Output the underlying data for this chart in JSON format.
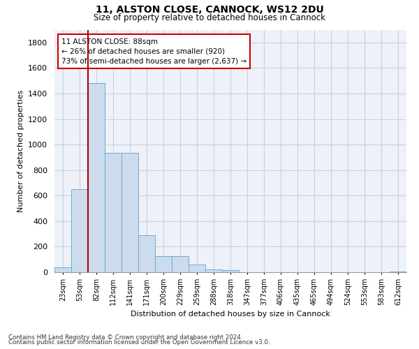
{
  "title1": "11, ALSTON CLOSE, CANNOCK, WS12 2DU",
  "title2": "Size of property relative to detached houses in Cannock",
  "xlabel": "Distribution of detached houses by size in Cannock",
  "ylabel": "Number of detached properties",
  "bin_labels": [
    "23sqm",
    "53sqm",
    "82sqm",
    "112sqm",
    "141sqm",
    "171sqm",
    "200sqm",
    "229sqm",
    "259sqm",
    "288sqm",
    "318sqm",
    "347sqm",
    "377sqm",
    "406sqm",
    "435sqm",
    "465sqm",
    "494sqm",
    "524sqm",
    "553sqm",
    "583sqm",
    "612sqm"
  ],
  "bar_values": [
    40,
    650,
    1480,
    935,
    935,
    290,
    125,
    125,
    62,
    22,
    15,
    0,
    0,
    0,
    0,
    0,
    0,
    0,
    0,
    0,
    8
  ],
  "bar_color": "#ccdcee",
  "bar_edge_color": "#6aaad4",
  "ylim": [
    0,
    1900
  ],
  "yticks": [
    0,
    200,
    400,
    600,
    800,
    1000,
    1200,
    1400,
    1600,
    1800
  ],
  "property_line_color": "#aa0000",
  "annotation_line1": "11 ALSTON CLOSE: 88sqm",
  "annotation_line2": "← 26% of detached houses are smaller (920)",
  "annotation_line3": "73% of semi-detached houses are larger (2,637) →",
  "annotation_box_color": "#ffffff",
  "annotation_box_edge": "#cc0000",
  "footnote1": "Contains HM Land Registry data © Crown copyright and database right 2024.",
  "footnote2": "Contains public sector information licensed under the Open Government Licence v3.0.",
  "grid_color": "#c8d0dc",
  "background_color": "#eef2f8"
}
